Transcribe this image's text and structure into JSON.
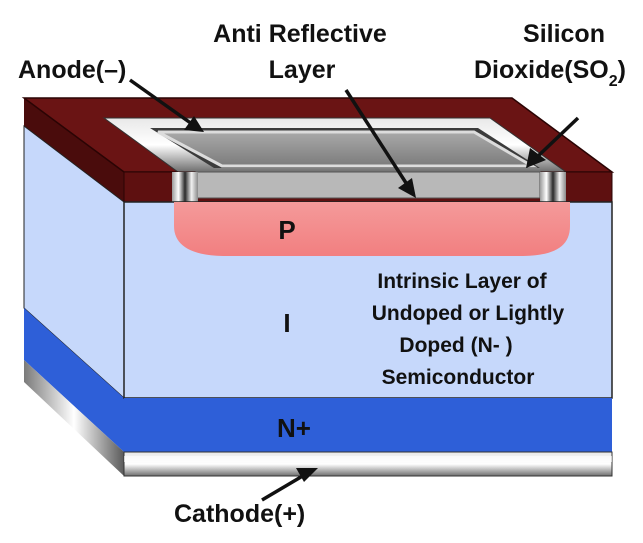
{
  "labels": {
    "anode": "Anode(–)",
    "arc_line1": "Anti Reflective",
    "arc_line2": "Layer",
    "sio2_line1": "Silicon",
    "sio2_line2_main": "Dioxide(SO",
    "sio2_line2_sub": "2",
    "sio2_line2_end": ")",
    "cathode": "Cathode(+)"
  },
  "regions": {
    "p": "P",
    "i": "I",
    "n": "N+"
  },
  "intrinsic_desc": {
    "line1": "Intrinsic Layer of",
    "line2": "Undoped or Lightly",
    "line3": "Doped (N- )",
    "line4": "Semiconductor"
  },
  "colors": {
    "oxide": "#5e1010",
    "intrinsic": "#c6d8fb",
    "p_region": "#f28a8a",
    "n_region": "#2e5fd8",
    "metal": "#bdbdbd",
    "arc_layer": "#8c8c8c"
  }
}
